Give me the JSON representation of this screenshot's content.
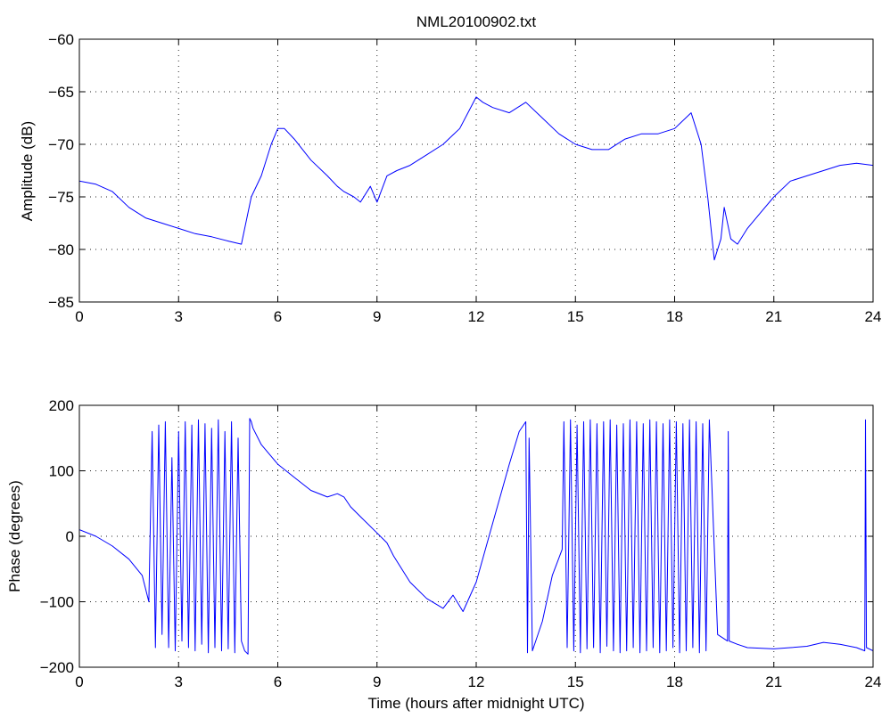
{
  "figure": {
    "title": "NML20100902.txt"
  },
  "chart_data": [
    {
      "type": "line",
      "title": "NML20100902.txt",
      "xlabel": "",
      "ylabel": "Amplitude (dB)",
      "xlim": [
        0,
        24
      ],
      "ylim": [
        -85,
        -60
      ],
      "xticks": [
        0,
        3,
        6,
        9,
        12,
        15,
        18,
        21,
        24
      ],
      "yticks": [
        -85,
        -80,
        -75,
        -70,
        -65,
        -60
      ],
      "xticklabels": [
        "0",
        "3",
        "6",
        "9",
        "12",
        "15",
        "18",
        "21",
        "24"
      ],
      "yticklabels": [
        "−85",
        "−80",
        "−75",
        "−70",
        "−65",
        "−60"
      ],
      "grid": true,
      "color": "#0000ff",
      "series": [
        {
          "x": [
            0,
            0.5,
            1.0,
            1.5,
            2.0,
            2.5,
            3.0,
            3.5,
            4.0,
            4.5,
            4.9,
            5.0,
            5.2,
            5.5,
            5.8,
            6.0,
            6.2,
            6.5,
            7.0,
            7.5,
            7.8,
            8.0,
            8.3,
            8.5,
            8.8,
            9.0,
            9.3,
            9.6,
            10.0,
            10.5,
            11.0,
            11.5,
            12.0,
            12.2,
            12.5,
            13.0,
            13.5,
            14.0,
            14.5,
            15.0,
            15.5,
            16.0,
            16.5,
            17.0,
            17.5,
            18.0,
            18.5,
            18.8,
            19.0,
            19.2,
            19.4,
            19.5,
            19.7,
            19.9,
            20.2,
            20.6,
            21.0,
            21.5,
            22.0,
            22.5,
            23.0,
            23.5,
            24.0
          ],
          "y": [
            -73.5,
            -73.8,
            -74.5,
            -76.0,
            -77.0,
            -77.5,
            -78.0,
            -78.5,
            -78.8,
            -79.2,
            -79.5,
            -78.0,
            -75.0,
            -73.0,
            -70.0,
            -68.5,
            -68.5,
            -69.5,
            -71.5,
            -73.0,
            -74.0,
            -74.5,
            -75.0,
            -75.5,
            -74.0,
            -75.5,
            -73.0,
            -72.5,
            -72.0,
            -71.0,
            -70.0,
            -68.5,
            -65.5,
            -66.0,
            -66.5,
            -67.0,
            -66.0,
            -67.5,
            -69.0,
            -70.0,
            -70.5,
            -70.5,
            -69.5,
            -69.0,
            -69.0,
            -68.5,
            -67.0,
            -70.0,
            -75.0,
            -81.0,
            -79.0,
            -76.0,
            -79.0,
            -79.5,
            -78.0,
            -76.5,
            -75.0,
            -73.5,
            -73.0,
            -72.5,
            -72.0,
            -71.8,
            -72.0
          ]
        }
      ]
    },
    {
      "type": "line",
      "title": "",
      "xlabel": "Time (hours after midnight UTC)",
      "ylabel": "Phase (degrees)",
      "xlim": [
        0,
        24
      ],
      "ylim": [
        -200,
        200
      ],
      "xticks": [
        0,
        3,
        6,
        9,
        12,
        15,
        18,
        21,
        24
      ],
      "yticks": [
        -200,
        -100,
        0,
        100,
        200
      ],
      "xticklabels": [
        "0",
        "3",
        "6",
        "9",
        "12",
        "15",
        "18",
        "21",
        "24"
      ],
      "yticklabels": [
        "−200",
        "−100",
        "0",
        "100",
        "200"
      ],
      "grid": true,
      "color": "#0000ff",
      "series": [
        {
          "x": [
            0,
            0.5,
            1.0,
            1.5,
            1.9,
            2.1,
            2.2,
            2.3,
            2.4,
            2.5,
            2.6,
            2.7,
            2.8,
            2.9,
            3.0,
            3.1,
            3.2,
            3.3,
            3.4,
            3.5,
            3.6,
            3.7,
            3.8,
            3.9,
            4.0,
            4.1,
            4.2,
            4.3,
            4.4,
            4.5,
            4.6,
            4.7,
            4.8,
            4.9,
            5.0,
            5.1,
            5.15,
            5.2,
            5.25,
            5.5,
            6.0,
            6.5,
            7.0,
            7.5,
            7.8,
            8.0,
            8.2,
            8.5,
            9.0,
            9.3,
            9.5,
            10.0,
            10.5,
            11.0,
            11.3,
            11.6,
            12.0,
            12.5,
            13.0,
            13.3,
            13.5,
            13.55,
            13.6,
            13.7,
            14.0,
            14.3,
            14.6,
            14.65,
            14.75,
            14.85,
            14.95,
            15.05,
            15.15,
            15.25,
            15.35,
            15.45,
            15.55,
            15.65,
            15.75,
            15.85,
            15.95,
            16.05,
            16.15,
            16.25,
            16.35,
            16.45,
            16.55,
            16.65,
            16.75,
            16.85,
            16.95,
            17.05,
            17.15,
            17.25,
            17.35,
            17.45,
            17.55,
            17.65,
            17.75,
            17.85,
            17.95,
            18.05,
            18.15,
            18.25,
            18.35,
            18.45,
            18.55,
            18.65,
            18.75,
            18.85,
            18.95,
            19.05,
            19.3,
            19.6,
            19.62,
            19.65,
            19.9,
            20.2,
            21.0,
            21.5,
            22.0,
            22.5,
            23.0,
            23.5,
            23.75,
            23.77,
            23.8,
            24.0
          ],
          "y": [
            10,
            0,
            -15,
            -35,
            -60,
            -100,
            160,
            -170,
            170,
            -150,
            175,
            -170,
            120,
            -175,
            160,
            -160,
            175,
            -170,
            170,
            -175,
            178,
            -165,
            172,
            -178,
            165,
            -170,
            178,
            -175,
            160,
            -172,
            175,
            -178,
            150,
            -160,
            -175,
            -180,
            180,
            175,
            165,
            140,
            110,
            90,
            70,
            60,
            65,
            60,
            45,
            30,
            5,
            -10,
            -30,
            -70,
            -95,
            -110,
            -90,
            -115,
            -70,
            20,
            110,
            160,
            175,
            -178,
            150,
            -175,
            -130,
            -60,
            -20,
            175,
            -170,
            178,
            -175,
            170,
            -178,
            175,
            -172,
            178,
            -170,
            172,
            -178,
            175,
            -168,
            178,
            -175,
            170,
            -178,
            172,
            -175,
            178,
            -170,
            175,
            -178,
            172,
            -175,
            178,
            -170,
            175,
            -178,
            172,
            -175,
            178,
            -170,
            175,
            -178,
            172,
            -175,
            178,
            -170,
            175,
            -178,
            172,
            -175,
            178,
            -150,
            -160,
            160,
            -160,
            -165,
            -170,
            -172,
            -170,
            -168,
            -162,
            -165,
            -170,
            -175,
            178,
            -170,
            -175
          ]
        }
      ]
    }
  ]
}
